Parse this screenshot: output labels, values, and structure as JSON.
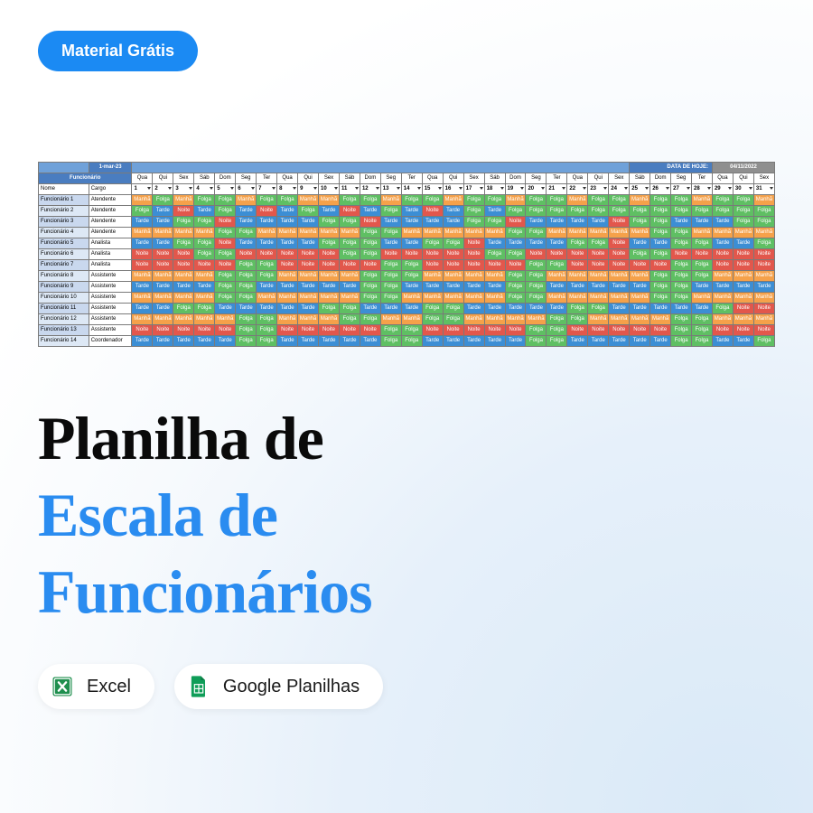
{
  "badge_label": "Material Grátis",
  "title": {
    "l1": "Planilha de",
    "l2": "Escala de",
    "l3": "Funcionários"
  },
  "chips": {
    "excel": "Excel",
    "sheets": "Google Planilhas"
  },
  "sheet": {
    "start_date": "1-mar-23",
    "hoje_label": "DATA DE HOJE:",
    "hoje_value": "04/11/2022",
    "func_header": "Funcionário",
    "name_label": "Nome",
    "cargo_label": "Cargo",
    "shift_colors": {
      "Manhã": "#f5a14a",
      "Tarde": "#3c8ed4",
      "Noite": "#e2574c",
      "Folga": "#5fbf63"
    },
    "shift_text_colors": {
      "Manhã": "#ffffff",
      "Tarde": "#ffffff",
      "Noite": "#ffffff",
      "Folga": "#ffffff"
    },
    "text_color": "#ffffff",
    "header_bg": "#4a7dc0",
    "header_bg_light": "#6fa1d9",
    "name_bg": "#c9d8ee",
    "name_bg_alt": "#dde8f5",
    "days": [
      "Qua",
      "Qui",
      "Sex",
      "Sáb",
      "Dom",
      "Seg",
      "Ter",
      "Qua",
      "Qui",
      "Sex",
      "Sáb",
      "Dom",
      "Seg",
      "Ter",
      "Qua",
      "Qui",
      "Sex",
      "Sáb",
      "Dom",
      "Seg",
      "Ter",
      "Qua",
      "Qui",
      "Sex",
      "Sáb",
      "Dom",
      "Seg",
      "Ter",
      "Qua",
      "Qui",
      "Sex"
    ],
    "nums": [
      1,
      2,
      3,
      4,
      5,
      6,
      7,
      8,
      9,
      10,
      11,
      12,
      13,
      14,
      15,
      16,
      17,
      18,
      19,
      20,
      21,
      22,
      23,
      24,
      25,
      26,
      27,
      28,
      29,
      30,
      31
    ],
    "rows": [
      {
        "n": "Funcionário 1",
        "c": "Atendente",
        "s": [
          "Manhã",
          "Folga",
          "Manhã",
          "Folga",
          "Folga",
          "Manhã",
          "Folga",
          "Folga",
          "Manhã",
          "Manhã",
          "Folga",
          "Folga",
          "Manhã",
          "Folga",
          "Folga",
          "Manhã",
          "Folga",
          "Folga",
          "Manhã",
          "Folga",
          "Folga",
          "Manhã",
          "Folga",
          "Folga",
          "Manhã",
          "Folga",
          "Folga",
          "Manhã",
          "Folga",
          "Folga",
          "Manhã"
        ]
      },
      {
        "n": "Funcionário 2",
        "c": "Atendente",
        "s": [
          "Folga",
          "Tarde",
          "Noite",
          "Tarde",
          "Folga",
          "Tarde",
          "Noite",
          "Tarde",
          "Folga",
          "Tarde",
          "Noite",
          "Tarde",
          "Folga",
          "Tarde",
          "Noite",
          "Tarde",
          "Folga",
          "Tarde",
          "Folga",
          "Folga",
          "Folga",
          "Folga",
          "Folga",
          "Folga",
          "Folga",
          "Folga",
          "Folga",
          "Folga",
          "Folga",
          "Folga",
          "Folga"
        ]
      },
      {
        "n": "Funcionário 3",
        "c": "Atendente",
        "s": [
          "Tarde",
          "Tarde",
          "Folga",
          "Folga",
          "Noite",
          "Tarde",
          "Tarde",
          "Tarde",
          "Tarde",
          "Folga",
          "Folga",
          "Noite",
          "Tarde",
          "Tarde",
          "Tarde",
          "Tarde",
          "Folga",
          "Folga",
          "Noite",
          "Tarde",
          "Tarde",
          "Tarde",
          "Tarde",
          "Noite",
          "Folga",
          "Folga",
          "Tarde",
          "Tarde",
          "Tarde",
          "Folga",
          "Folga"
        ]
      },
      {
        "n": "Funcionário 4",
        "c": "Atendente",
        "s": [
          "Manhã",
          "Manhã",
          "Manhã",
          "Manhã",
          "Folga",
          "Folga",
          "Manhã",
          "Manhã",
          "Manhã",
          "Manhã",
          "Manhã",
          "Folga",
          "Folga",
          "Manhã",
          "Manhã",
          "Manhã",
          "Manhã",
          "Manhã",
          "Folga",
          "Folga",
          "Manhã",
          "Manhã",
          "Manhã",
          "Manhã",
          "Manhã",
          "Folga",
          "Folga",
          "Manhã",
          "Manhã",
          "Manhã",
          "Manhã"
        ]
      },
      {
        "n": "Funcionário 5",
        "c": "Analista",
        "s": [
          "Tarde",
          "Tarde",
          "Folga",
          "Folga",
          "Noite",
          "Tarde",
          "Tarde",
          "Tarde",
          "Tarde",
          "Folga",
          "Folga",
          "Folga",
          "Tarde",
          "Tarde",
          "Folga",
          "Folga",
          "Noite",
          "Tarde",
          "Tarde",
          "Tarde",
          "Tarde",
          "Folga",
          "Folga",
          "Noite",
          "Tarde",
          "Tarde",
          "Folga",
          "Folga",
          "Tarde",
          "Tarde",
          "Folga"
        ]
      },
      {
        "n": "Funcionário 6",
        "c": "Analista",
        "s": [
          "Noite",
          "Noite",
          "Noite",
          "Folga",
          "Folga",
          "Noite",
          "Noite",
          "Noite",
          "Noite",
          "Noite",
          "Folga",
          "Folga",
          "Noite",
          "Noite",
          "Noite",
          "Noite",
          "Noite",
          "Folga",
          "Folga",
          "Noite",
          "Noite",
          "Noite",
          "Noite",
          "Noite",
          "Folga",
          "Folga",
          "Noite",
          "Noite",
          "Noite",
          "Noite",
          "Noite"
        ]
      },
      {
        "n": "Funcionário 7",
        "c": "Analista",
        "s": [
          "Noite",
          "Noite",
          "Noite",
          "Noite",
          "Noite",
          "Folga",
          "Folga",
          "Noite",
          "Noite",
          "Noite",
          "Noite",
          "Noite",
          "Folga",
          "Folga",
          "Noite",
          "Noite",
          "Noite",
          "Noite",
          "Noite",
          "Folga",
          "Folga",
          "Noite",
          "Noite",
          "Noite",
          "Noite",
          "Noite",
          "Folga",
          "Folga",
          "Noite",
          "Noite",
          "Noite"
        ]
      },
      {
        "n": "Funcionário 8",
        "c": "Assistente",
        "s": [
          "Manhã",
          "Manhã",
          "Manhã",
          "Manhã",
          "Folga",
          "Folga",
          "Folga",
          "Manhã",
          "Manhã",
          "Manhã",
          "Manhã",
          "Folga",
          "Folga",
          "Folga",
          "Manhã",
          "Manhã",
          "Manhã",
          "Manhã",
          "Folga",
          "Folga",
          "Manhã",
          "Manhã",
          "Manhã",
          "Manhã",
          "Manhã",
          "Folga",
          "Folga",
          "Folga",
          "Manhã",
          "Manhã",
          "Manhã"
        ]
      },
      {
        "n": "Funcionário 9",
        "c": "Assistente",
        "s": [
          "Tarde",
          "Tarde",
          "Tarde",
          "Tarde",
          "Folga",
          "Folga",
          "Tarde",
          "Tarde",
          "Tarde",
          "Tarde",
          "Tarde",
          "Folga",
          "Folga",
          "Tarde",
          "Tarde",
          "Tarde",
          "Tarde",
          "Tarde",
          "Folga",
          "Folga",
          "Tarde",
          "Tarde",
          "Tarde",
          "Tarde",
          "Tarde",
          "Folga",
          "Folga",
          "Tarde",
          "Tarde",
          "Tarde",
          "Tarde"
        ]
      },
      {
        "n": "Funcionário 10",
        "c": "Assistente",
        "s": [
          "Manhã",
          "Manhã",
          "Manhã",
          "Manhã",
          "Folga",
          "Folga",
          "Manhã",
          "Manhã",
          "Manhã",
          "Manhã",
          "Manhã",
          "Folga",
          "Folga",
          "Manhã",
          "Manhã",
          "Manhã",
          "Manhã",
          "Manhã",
          "Folga",
          "Folga",
          "Manhã",
          "Manhã",
          "Manhã",
          "Manhã",
          "Manhã",
          "Folga",
          "Folga",
          "Manhã",
          "Manhã",
          "Manhã",
          "Manhã"
        ]
      },
      {
        "n": "Funcionário 11",
        "c": "Assistente",
        "s": [
          "Tarde",
          "Tarde",
          "Folga",
          "Folga",
          "Tarde",
          "Tarde",
          "Tarde",
          "Tarde",
          "Tarde",
          "Folga",
          "Folga",
          "Tarde",
          "Tarde",
          "Tarde",
          "Folga",
          "Folga",
          "Tarde",
          "Tarde",
          "Tarde",
          "Tarde",
          "Tarde",
          "Folga",
          "Folga",
          "Tarde",
          "Tarde",
          "Tarde",
          "Tarde",
          "Tarde",
          "Folga",
          "Noite",
          "Noite"
        ]
      },
      {
        "n": "Funcionário 12",
        "c": "Assistente",
        "s": [
          "Manhã",
          "Manhã",
          "Manhã",
          "Manhã",
          "Manhã",
          "Folga",
          "Folga",
          "Manhã",
          "Manhã",
          "Manhã",
          "Folga",
          "Folga",
          "Manhã",
          "Manhã",
          "Folga",
          "Folga",
          "Manhã",
          "Manhã",
          "Manhã",
          "Manhã",
          "Folga",
          "Folga",
          "Manhã",
          "Manhã",
          "Manhã",
          "Manhã",
          "Folga",
          "Folga",
          "Manhã",
          "Manhã",
          "Manhã"
        ]
      },
      {
        "n": "Funcionário 13",
        "c": "Assistente",
        "s": [
          "Noite",
          "Noite",
          "Noite",
          "Noite",
          "Noite",
          "Folga",
          "Folga",
          "Noite",
          "Noite",
          "Noite",
          "Noite",
          "Noite",
          "Folga",
          "Folga",
          "Noite",
          "Noite",
          "Noite",
          "Noite",
          "Noite",
          "Folga",
          "Folga",
          "Noite",
          "Noite",
          "Noite",
          "Noite",
          "Noite",
          "Folga",
          "Folga",
          "Noite",
          "Noite",
          "Noite"
        ]
      },
      {
        "n": "Funcionário 14",
        "c": "Coordenador",
        "s": [
          "Tarde",
          "Tarde",
          "Tarde",
          "Tarde",
          "Tarde",
          "Folga",
          "Folga",
          "Tarde",
          "Tarde",
          "Tarde",
          "Tarde",
          "Tarde",
          "Folga",
          "Folga",
          "Tarde",
          "Tarde",
          "Tarde",
          "Tarde",
          "Tarde",
          "Folga",
          "Folga",
          "Tarde",
          "Tarde",
          "Tarde",
          "Tarde",
          "Tarde",
          "Folga",
          "Folga",
          "Tarde",
          "Tarde",
          "Folga"
        ]
      }
    ],
    "col_width_name": 56,
    "col_width_cargo": 48,
    "col_width_day": 23
  }
}
